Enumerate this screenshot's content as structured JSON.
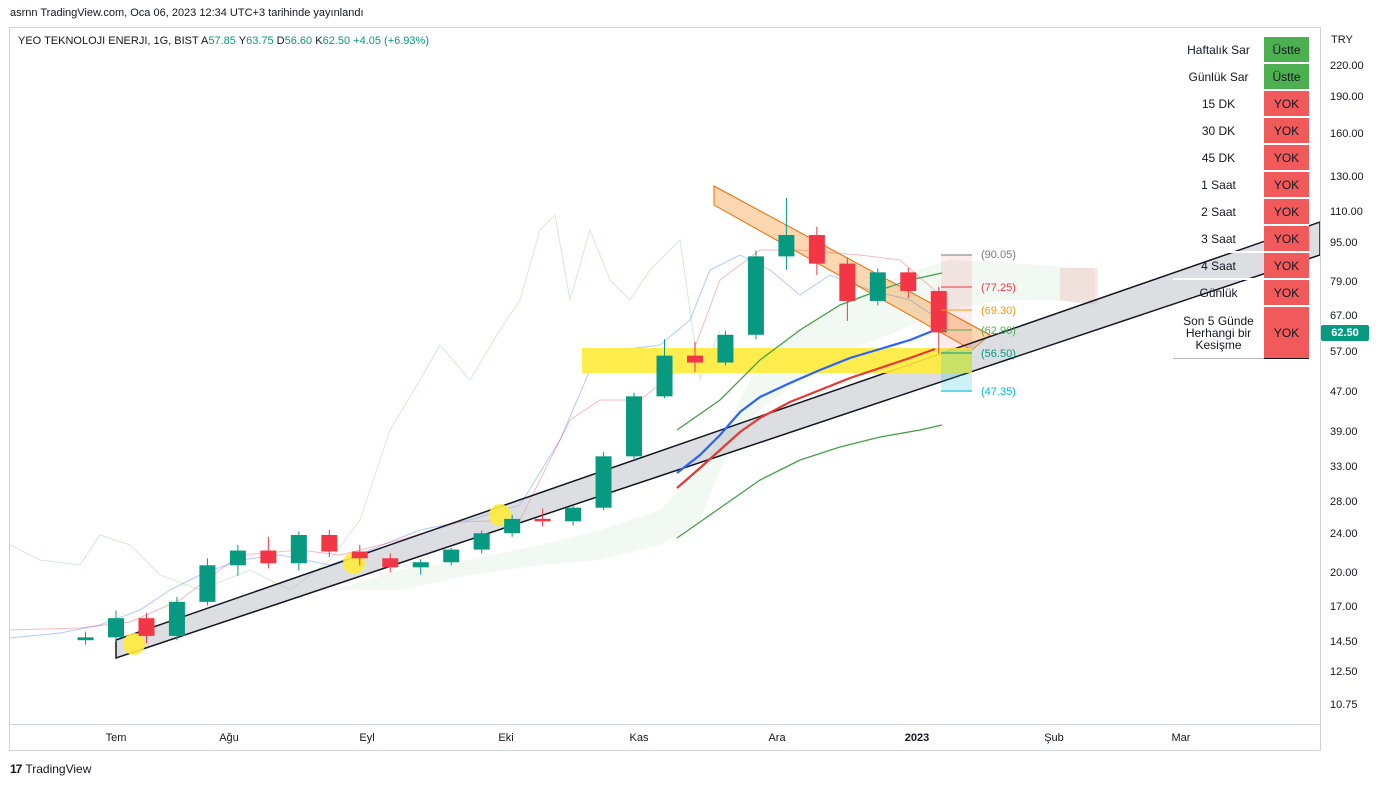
{
  "header": {
    "published": "asrnn TradingView.com, Oca 06, 2023 12:34 UTC+3 tarihinde yayınlandı"
  },
  "legend": {
    "symbol": "YEO TEKNOLOJI ENERJI, 1G, BIST",
    "open_label": "A",
    "open": "57.85",
    "high_label": "Y",
    "high": "63.75",
    "low_label": "D",
    "low": "56.60",
    "close_label": "K",
    "close": "62.50",
    "change": "+4.05 (+6.93%)"
  },
  "axis": {
    "currency": "TRY",
    "last_price": "62.50",
    "x_labels": [
      "Tem",
      "Ağu",
      "Eyl",
      "Eki",
      "Kas",
      "Ara",
      "2023",
      "Şub",
      "Mar"
    ],
    "y_labels": [
      "220.00",
      "190.00",
      "160.00",
      "130.00",
      "110.00",
      "95.00",
      "79.00",
      "67.00",
      "57.00",
      "47.00",
      "39.00",
      "33.00",
      "28.00",
      "24.00",
      "20.00",
      "17.00",
      "14.50",
      "12.50",
      "10.75"
    ]
  },
  "fib_levels": [
    "(90.05)",
    "(77.25)",
    "(69.30)",
    "(62.90)",
    "(56.50)",
    "(47.35)"
  ],
  "status_table": [
    {
      "name": "Haftalık Sar",
      "value": "Üstte",
      "ok": true
    },
    {
      "name": "Günlük Sar",
      "value": "Üstte",
      "ok": true
    },
    {
      "name": "15 DK",
      "value": "YOK",
      "ok": false
    },
    {
      "name": "30 DK",
      "value": "YOK",
      "ok": false
    },
    {
      "name": "45 DK",
      "value": "YOK",
      "ok": false
    },
    {
      "name": "1 Saat",
      "value": "YOK",
      "ok": false
    },
    {
      "name": "2 Saat",
      "value": "YOK",
      "ok": false
    },
    {
      "name": "3 Saat",
      "value": "YOK",
      "ok": false
    },
    {
      "name": "4 Saat",
      "value": "YOK",
      "ok": false
    },
    {
      "name": "Günlük",
      "value": "YOK",
      "ok": false
    },
    {
      "name": "Son 5 Günde Herhangi bir Kesişme",
      "value": "YOK",
      "ok": false
    }
  ],
  "footer": {
    "brand": "TradingView",
    "logo_text": "17"
  },
  "colors": {
    "up": "#089981",
    "down": "#f23645",
    "accent": "#089981"
  },
  "chart_data": {
    "type": "candlestick",
    "title": "YEO TEKNOLOJI ENERJI, 1G, BIST",
    "scale": "log",
    "ylim": [
      10.0,
      240.0
    ],
    "x_range": [
      "2022-06-20",
      "2023-03-20"
    ],
    "ohlc": [
      [
        "2022-06-24",
        14.6,
        15.2,
        14.3,
        14.8
      ],
      [
        "2022-07-01",
        14.8,
        16.8,
        14.5,
        16.2
      ],
      [
        "2022-07-08",
        16.2,
        16.6,
        14.4,
        14.9
      ],
      [
        "2022-07-15",
        14.9,
        17.9,
        14.6,
        17.5
      ],
      [
        "2022-07-22",
        17.5,
        21.5,
        17.2,
        20.8
      ],
      [
        "2022-07-29",
        20.8,
        22.9,
        19.8,
        22.3
      ],
      [
        "2022-08-05",
        22.3,
        23.8,
        20.5,
        21.0
      ],
      [
        "2022-08-12",
        21.0,
        24.4,
        20.3,
        24.0
      ],
      [
        "2022-08-19",
        24.0,
        24.6,
        21.6,
        22.2
      ],
      [
        "2022-08-26",
        22.2,
        22.9,
        20.8,
        21.5
      ],
      [
        "2022-09-02",
        21.5,
        22.0,
        20.1,
        20.6
      ],
      [
        "2022-09-09",
        20.6,
        21.4,
        19.9,
        21.1
      ],
      [
        "2022-09-16",
        21.1,
        22.6,
        20.8,
        22.4
      ],
      [
        "2022-09-23",
        22.4,
        24.5,
        22.0,
        24.2
      ],
      [
        "2022-09-30",
        24.2,
        26.4,
        23.8,
        25.9
      ],
      [
        "2022-10-07",
        25.9,
        27.2,
        25.0,
        25.6
      ],
      [
        "2022-10-14",
        25.6,
        27.6,
        25.1,
        27.3
      ],
      [
        "2022-10-21",
        27.3,
        35.5,
        27.0,
        34.8
      ],
      [
        "2022-10-28",
        34.8,
        47.0,
        34.2,
        46.2
      ],
      [
        "2022-11-04",
        46.2,
        60.5,
        45.8,
        56.0
      ],
      [
        "2022-11-11",
        56.0,
        59.8,
        51.8,
        54.2
      ],
      [
        "2022-11-18",
        54.2,
        63.0,
        53.5,
        61.8
      ],
      [
        "2022-11-25",
        61.8,
        92.0,
        60.5,
        89.5
      ],
      [
        "2022-12-02",
        89.5,
        118.0,
        84.0,
        99.0
      ],
      [
        "2022-12-09",
        99.0,
        103.0,
        82.0,
        86.5
      ],
      [
        "2022-12-16",
        86.5,
        89.0,
        66.0,
        72.5
      ],
      [
        "2022-12-23",
        72.5,
        84.5,
        71.0,
        83.0
      ],
      [
        "2022-12-30",
        83.0,
        84.8,
        73.5,
        76.0
      ],
      [
        "2023-01-06",
        76.0,
        77.5,
        56.6,
        62.5
      ]
    ]
  }
}
